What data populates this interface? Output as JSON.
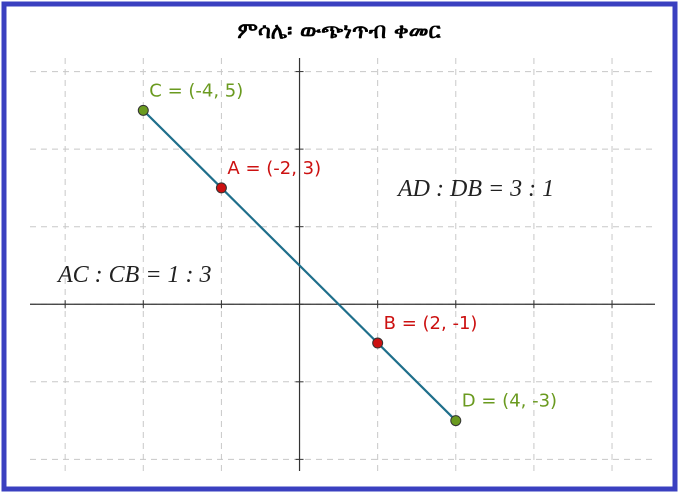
{
  "chart_data": {
    "type": "scatter",
    "title": "ምሳሌ፡ ውጭነጥብ ቀመር",
    "points": [
      {
        "label": "C = (-4, 5)",
        "x": -4,
        "y": 5,
        "color": "#6a9a1f"
      },
      {
        "label": "A = (-2, 3)",
        "x": -2,
        "y": 3,
        "color": "#cc1111"
      },
      {
        "label": "B = (2, -1)",
        "x": 2,
        "y": -1,
        "color": "#cc1111"
      },
      {
        "label": "D = (4, -3)",
        "x": 4,
        "y": -3,
        "color": "#6a9a1f"
      }
    ],
    "line_color": "#1f6f8b",
    "annotations": [
      "AD : DB = 3 : 1",
      "AC : CB = 1 : 3"
    ],
    "xlim": [
      -6.9,
      9.1
    ],
    "ylim": [
      -4.3,
      6.35
    ],
    "xticks": [
      -6,
      -4,
      -2,
      0,
      2,
      4,
      6,
      8
    ],
    "yticks": [
      -4,
      -2,
      0,
      2,
      4,
      6
    ],
    "grid": true
  }
}
